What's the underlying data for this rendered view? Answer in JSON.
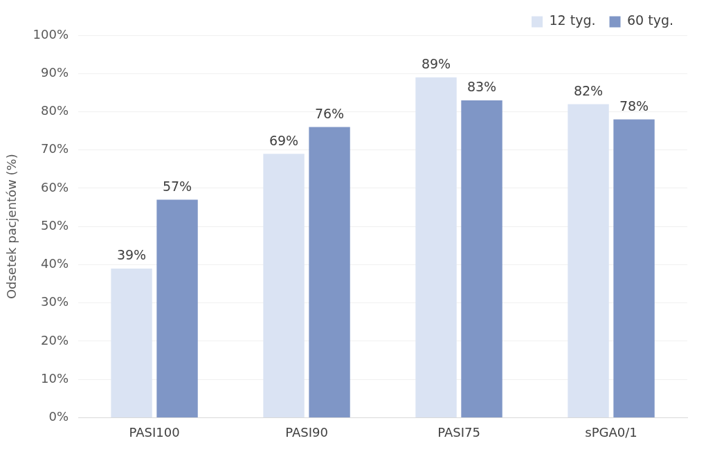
{
  "chart_data": {
    "type": "bar",
    "ylabel": "Odsetek pacjentów (%)",
    "categories": [
      "PASI100",
      "PASI90",
      "PASI75",
      "sPGA0/1"
    ],
    "series": [
      {
        "name": "12 tyg.",
        "color": "#dae3f3",
        "values": [
          39,
          69,
          89,
          82
        ],
        "value_labels": [
          "39%",
          "69%",
          "89%",
          "82%"
        ]
      },
      {
        "name": "60 tyg.",
        "color": "#7f96c6",
        "values": [
          57,
          76,
          83,
          78
        ],
        "value_labels": [
          "57%",
          "76%",
          "83%",
          "78%"
        ]
      }
    ],
    "ylim": [
      0,
      100
    ],
    "yticks": [
      {
        "value": 0,
        "label": "0%"
      },
      {
        "value": 10,
        "label": "10%"
      },
      {
        "value": 20,
        "label": "20%"
      },
      {
        "value": 30,
        "label": "30%"
      },
      {
        "value": 40,
        "label": "40%"
      },
      {
        "value": 50,
        "label": "50%"
      },
      {
        "value": 60,
        "label": "60%"
      },
      {
        "value": 70,
        "label": "70%"
      },
      {
        "value": 80,
        "label": "80%"
      },
      {
        "value": 90,
        "label": "90%"
      },
      {
        "value": 100,
        "label": "100%"
      }
    ],
    "grid": "y",
    "legend": "top right"
  }
}
